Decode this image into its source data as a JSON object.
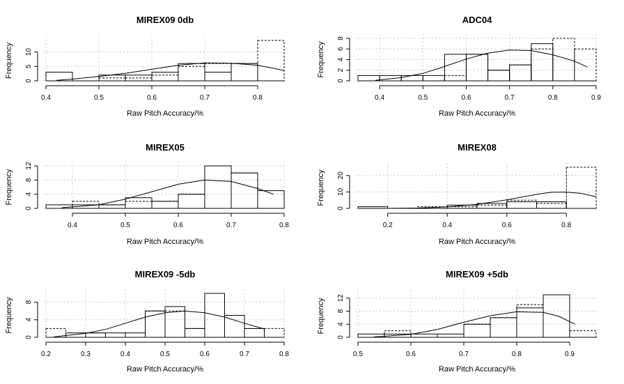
{
  "chart_data": [
    {
      "type": "bar",
      "title": "MIREX09 0db",
      "xlabel": "Raw Pitch Accuracy/%",
      "ylabel": "Frequency",
      "xlim": [
        0.4,
        0.85
      ],
      "ylim": [
        0,
        14
      ],
      "xticks": [
        "0.4",
        "0.5",
        "0.6",
        "0.7",
        "0.8"
      ],
      "yticks": [
        "0",
        "5",
        "10"
      ],
      "grid": true,
      "histograms": [
        {
          "style": "solid",
          "bins": [
            [
              0.4,
              0.45,
              3
            ],
            [
              0.45,
              0.5,
              0
            ],
            [
              0.5,
              0.55,
              2
            ],
            [
              0.55,
              0.6,
              2
            ],
            [
              0.6,
              0.65,
              3
            ],
            [
              0.65,
              0.7,
              6
            ],
            [
              0.7,
              0.75,
              3
            ],
            [
              0.75,
              0.8,
              6
            ],
            [
              0.8,
              0.85,
              0
            ]
          ]
        },
        {
          "style": "dashed",
          "bins": [
            [
              0.4,
              0.45,
              0
            ],
            [
              0.45,
              0.5,
              0
            ],
            [
              0.5,
              0.55,
              1
            ],
            [
              0.55,
              0.6,
              1
            ],
            [
              0.6,
              0.65,
              2
            ],
            [
              0.65,
              0.7,
              5
            ],
            [
              0.7,
              0.75,
              6
            ],
            [
              0.75,
              0.8,
              6
            ],
            [
              0.8,
              0.85,
              14
            ]
          ]
        }
      ],
      "curve": [
        [
          0.42,
          0.2
        ],
        [
          0.45,
          0.6
        ],
        [
          0.5,
          1.5
        ],
        [
          0.55,
          2.6
        ],
        [
          0.6,
          4.0
        ],
        [
          0.65,
          5.4
        ],
        [
          0.7,
          6.2
        ],
        [
          0.75,
          6.1
        ],
        [
          0.8,
          5.4
        ],
        [
          0.85,
          3.6
        ]
      ]
    },
    {
      "type": "bar",
      "title": "ADC04",
      "xlabel": "Raw Pitch Accuracy/%",
      "ylabel": "Frequency",
      "xlim": [
        0.35,
        0.9
      ],
      "ylim": [
        0,
        8
      ],
      "xticks": [
        "0.4",
        "0.5",
        "0.6",
        "0.7",
        "0.8",
        "0.9"
      ],
      "yticks": [
        "0",
        "2",
        "4",
        "6",
        "8"
      ],
      "grid": true,
      "histograms": [
        {
          "style": "solid",
          "bins": [
            [
              0.35,
              0.4,
              1
            ],
            [
              0.4,
              0.45,
              1
            ],
            [
              0.45,
              0.5,
              1
            ],
            [
              0.5,
              0.55,
              1
            ],
            [
              0.55,
              0.6,
              5
            ],
            [
              0.6,
              0.65,
              5
            ],
            [
              0.65,
              0.7,
              2
            ],
            [
              0.7,
              0.75,
              3
            ],
            [
              0.75,
              0.8,
              7
            ],
            [
              0.8,
              0.85,
              0
            ],
            [
              0.85,
              0.9,
              0
            ]
          ]
        },
        {
          "style": "dashed",
          "bins": [
            [
              0.35,
              0.4,
              0
            ],
            [
              0.4,
              0.45,
              0
            ],
            [
              0.45,
              0.5,
              0
            ],
            [
              0.5,
              0.55,
              0
            ],
            [
              0.55,
              0.6,
              1
            ],
            [
              0.6,
              0.65,
              5
            ],
            [
              0.65,
              0.7,
              2
            ],
            [
              0.7,
              0.75,
              3
            ],
            [
              0.75,
              0.8,
              6
            ],
            [
              0.8,
              0.85,
              8
            ],
            [
              0.85,
              0.9,
              6
            ]
          ]
        }
      ],
      "curve": [
        [
          0.39,
          0.1
        ],
        [
          0.45,
          0.6
        ],
        [
          0.5,
          1.4
        ],
        [
          0.55,
          2.7
        ],
        [
          0.6,
          4.1
        ],
        [
          0.65,
          5.2
        ],
        [
          0.7,
          5.8
        ],
        [
          0.75,
          5.7
        ],
        [
          0.8,
          4.9
        ],
        [
          0.85,
          3.7
        ],
        [
          0.88,
          2.6
        ]
      ]
    },
    {
      "type": "bar",
      "title": "MIREX05",
      "xlabel": "Raw Pitch Accuracy/%",
      "ylabel": "Frequency",
      "xlim": [
        0.35,
        0.8
      ],
      "ylim": [
        0,
        12
      ],
      "xticks": [
        "0.4",
        "0.5",
        "0.6",
        "0.7",
        "0.8"
      ],
      "yticks": [
        "0",
        "4",
        "8",
        "12"
      ],
      "grid": true,
      "histograms": [
        {
          "style": "solid",
          "bins": [
            [
              0.35,
              0.4,
              1
            ],
            [
              0.4,
              0.45,
              1
            ],
            [
              0.45,
              0.5,
              1
            ],
            [
              0.5,
              0.55,
              3
            ],
            [
              0.55,
              0.6,
              2
            ],
            [
              0.6,
              0.65,
              4
            ],
            [
              0.65,
              0.7,
              12
            ],
            [
              0.7,
              0.75,
              10
            ],
            [
              0.75,
              0.8,
              5
            ]
          ]
        },
        {
          "style": "dashed",
          "bins": [
            [
              0.35,
              0.4,
              0
            ],
            [
              0.4,
              0.45,
              2
            ],
            [
              0.45,
              0.5,
              1
            ],
            [
              0.5,
              0.55,
              2
            ],
            [
              0.55,
              0.6,
              2
            ],
            [
              0.6,
              0.65,
              4
            ],
            [
              0.65,
              0.7,
              12
            ],
            [
              0.7,
              0.75,
              10
            ],
            [
              0.75,
              0.8,
              0
            ]
          ]
        }
      ],
      "curve": [
        [
          0.38,
          0.2
        ],
        [
          0.45,
          1.0
        ],
        [
          0.5,
          2.6
        ],
        [
          0.55,
          4.7
        ],
        [
          0.6,
          6.8
        ],
        [
          0.65,
          8.0
        ],
        [
          0.7,
          7.6
        ],
        [
          0.75,
          5.6
        ],
        [
          0.78,
          4.0
        ]
      ]
    },
    {
      "type": "bar",
      "title": "MIREX08",
      "xlabel": "Raw Pitch Accuracy/%",
      "ylabel": "Frequency",
      "xlim": [
        0.1,
        0.9
      ],
      "ylim": [
        0,
        25
      ],
      "xticks": [
        "0.2",
        "0.4",
        "0.6",
        "0.8"
      ],
      "yticks": [
        "0",
        "10",
        "20"
      ],
      "grid": true,
      "histograms": [
        {
          "style": "solid",
          "bins": [
            [
              0.1,
              0.2,
              1
            ],
            [
              0.2,
              0.3,
              0
            ],
            [
              0.3,
              0.4,
              0
            ],
            [
              0.4,
              0.5,
              2
            ],
            [
              0.5,
              0.6,
              3
            ],
            [
              0.6,
              0.7,
              4
            ],
            [
              0.7,
              0.8,
              4
            ],
            [
              0.8,
              0.9,
              0
            ]
          ]
        },
        {
          "style": "dashed",
          "bins": [
            [
              0.1,
              0.2,
              0
            ],
            [
              0.2,
              0.3,
              0
            ],
            [
              0.3,
              0.4,
              1
            ],
            [
              0.4,
              0.5,
              1
            ],
            [
              0.5,
              0.6,
              2
            ],
            [
              0.6,
              0.7,
              5
            ],
            [
              0.7,
              0.8,
              3
            ],
            [
              0.8,
              0.9,
              25
            ]
          ]
        }
      ],
      "curve": [
        [
          0.2,
          0.0
        ],
        [
          0.3,
          0.2
        ],
        [
          0.4,
          0.9
        ],
        [
          0.5,
          2.4
        ],
        [
          0.6,
          5.2
        ],
        [
          0.7,
          8.5
        ],
        [
          0.75,
          9.8
        ],
        [
          0.8,
          9.9
        ],
        [
          0.85,
          9.1
        ],
        [
          0.9,
          7.1
        ]
      ]
    },
    {
      "type": "bar",
      "title": "MIREX09 -5db",
      "xlabel": "Raw Pitch Accuracy/%",
      "ylabel": "Frequency",
      "xlim": [
        0.2,
        0.8
      ],
      "ylim": [
        0,
        10
      ],
      "xticks": [
        "0.2",
        "0.3",
        "0.4",
        "0.5",
        "0.6",
        "0.7",
        "0.8"
      ],
      "yticks": [
        "0",
        "4",
        "8"
      ],
      "grid": true,
      "histograms": [
        {
          "style": "solid",
          "bins": [
            [
              0.2,
              0.25,
              0
            ],
            [
              0.25,
              0.3,
              1
            ],
            [
              0.3,
              0.35,
              1
            ],
            [
              0.35,
              0.4,
              1
            ],
            [
              0.4,
              0.45,
              1
            ],
            [
              0.45,
              0.5,
              6
            ],
            [
              0.5,
              0.55,
              7
            ],
            [
              0.55,
              0.6,
              2
            ],
            [
              0.6,
              0.65,
              10
            ],
            [
              0.65,
              0.7,
              5
            ],
            [
              0.7,
              0.75,
              2
            ],
            [
              0.75,
              0.8,
              0
            ]
          ]
        },
        {
          "style": "dashed",
          "bins": [
            [
              0.2,
              0.25,
              2
            ],
            [
              0.25,
              0.3,
              0
            ],
            [
              0.3,
              0.35,
              1
            ],
            [
              0.35,
              0.4,
              0
            ],
            [
              0.4,
              0.45,
              0
            ],
            [
              0.45,
              0.5,
              6
            ],
            [
              0.5,
              0.55,
              6
            ],
            [
              0.55,
              0.6,
              2
            ],
            [
              0.6,
              0.65,
              10
            ],
            [
              0.65,
              0.7,
              5
            ],
            [
              0.7,
              0.75,
              2
            ],
            [
              0.75,
              0.8,
              2
            ]
          ]
        }
      ],
      "curve": [
        [
          0.22,
          0.1
        ],
        [
          0.3,
          0.9
        ],
        [
          0.35,
          1.8
        ],
        [
          0.4,
          3.2
        ],
        [
          0.45,
          4.6
        ],
        [
          0.5,
          5.6
        ],
        [
          0.55,
          6.0
        ],
        [
          0.6,
          5.6
        ],
        [
          0.65,
          4.6
        ],
        [
          0.7,
          3.2
        ],
        [
          0.75,
          1.9
        ]
      ]
    },
    {
      "type": "bar",
      "title": "MIREX09 +5db",
      "xlabel": "Raw Pitch Accuracy/%",
      "ylabel": "Frequency",
      "xlim": [
        0.5,
        0.95
      ],
      "ylim": [
        0,
        13
      ],
      "xticks": [
        "0.5",
        "0.6",
        "0.7",
        "0.8",
        "0.9"
      ],
      "yticks": [
        "0",
        "4",
        "8",
        "12"
      ],
      "grid": true,
      "histograms": [
        {
          "style": "solid",
          "bins": [
            [
              0.5,
              0.55,
              1
            ],
            [
              0.55,
              0.6,
              1
            ],
            [
              0.6,
              0.65,
              1
            ],
            [
              0.65,
              0.7,
              1
            ],
            [
              0.7,
              0.75,
              4
            ],
            [
              0.75,
              0.8,
              6
            ],
            [
              0.8,
              0.85,
              9
            ],
            [
              0.85,
              0.9,
              13
            ],
            [
              0.9,
              0.95,
              0
            ]
          ]
        },
        {
          "style": "dashed",
          "bins": [
            [
              0.5,
              0.55,
              0
            ],
            [
              0.55,
              0.6,
              2
            ],
            [
              0.6,
              0.65,
              0
            ],
            [
              0.65,
              0.7,
              0
            ],
            [
              0.7,
              0.75,
              4
            ],
            [
              0.75,
              0.8,
              6
            ],
            [
              0.8,
              0.85,
              10
            ],
            [
              0.85,
              0.9,
              13
            ],
            [
              0.9,
              0.95,
              2
            ]
          ]
        }
      ],
      "curve": [
        [
          0.53,
          0.1
        ],
        [
          0.6,
          0.9
        ],
        [
          0.65,
          2.4
        ],
        [
          0.7,
          4.6
        ],
        [
          0.75,
          6.6
        ],
        [
          0.8,
          7.8
        ],
        [
          0.85,
          7.6
        ],
        [
          0.88,
          6.4
        ],
        [
          0.91,
          4.0
        ]
      ]
    }
  ]
}
